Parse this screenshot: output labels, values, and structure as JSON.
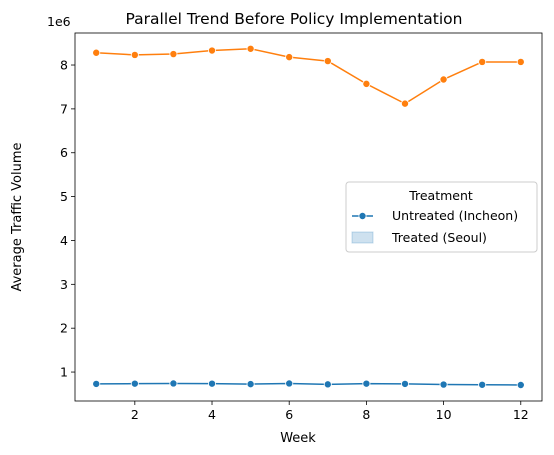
{
  "chart_data": {
    "type": "line",
    "title": "Parallel Trend Before Policy Implementation",
    "xlabel": "Week",
    "ylabel": "Average Traffic Volume",
    "y_multiplier_label": "1e6",
    "x": [
      1,
      2,
      3,
      4,
      5,
      6,
      7,
      8,
      9,
      10,
      11,
      12
    ],
    "xlim": [
      0.45,
      12.55
    ],
    "ylim": [
      0.34,
      8.73
    ],
    "x_ticks": [
      2,
      4,
      6,
      8,
      10,
      12
    ],
    "y_ticks": [
      1,
      2,
      3,
      4,
      5,
      6,
      7,
      8
    ],
    "grid": false,
    "series": [
      {
        "name": "Untreated (Incheon)",
        "color": "#1f77b4",
        "marker": "circle",
        "values": [
          0.73,
          0.735,
          0.74,
          0.735,
          0.725,
          0.74,
          0.72,
          0.735,
          0.73,
          0.715,
          0.71,
          0.705
        ]
      },
      {
        "name": "Treated (Seoul)",
        "color": "#ff7f0e",
        "marker": "circle",
        "values": [
          8.28,
          8.23,
          8.25,
          8.33,
          8.37,
          8.18,
          8.09,
          7.57,
          7.12,
          7.67,
          8.07,
          8.07
        ]
      }
    ],
    "legend": {
      "title": "Treatment",
      "placement": "center-right",
      "entries": [
        {
          "label": "Untreated (Incheon)",
          "style": "line-marker",
          "color": "#1f77b4"
        },
        {
          "label": "Treated (Seoul)",
          "style": "band",
          "color": "#1f77b4"
        }
      ]
    }
  }
}
